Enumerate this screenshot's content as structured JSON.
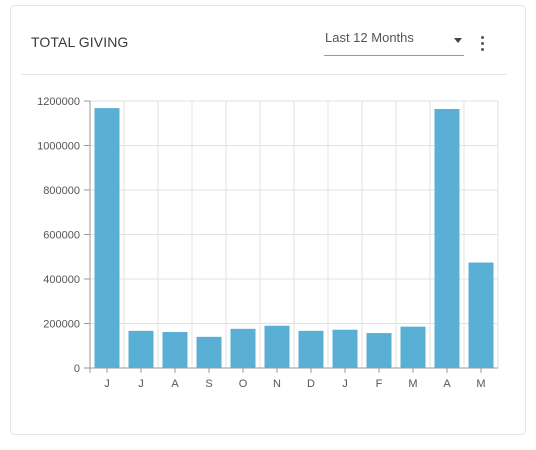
{
  "card": {
    "title": "TOTAL GIVING",
    "period_select": {
      "value": "Last 12 Months"
    },
    "menu_icon": "more-vertical-icon"
  },
  "colors": {
    "bar": "#5aafd4",
    "grid": "#e2e2e2",
    "axis": "#999999"
  },
  "chart_data": {
    "type": "bar",
    "title": "",
    "xlabel": "",
    "ylabel": "",
    "categories": [
      "J",
      "J",
      "A",
      "S",
      "O",
      "N",
      "D",
      "J",
      "F",
      "M",
      "A",
      "M"
    ],
    "values": [
      1168000,
      167000,
      162000,
      140000,
      176000,
      190000,
      167000,
      172000,
      157000,
      186000,
      1164000,
      474000
    ],
    "ylim": [
      0,
      1200000
    ],
    "yticks": [
      0,
      200000,
      400000,
      600000,
      800000,
      1000000,
      1200000
    ],
    "grid": true,
    "legend": "none"
  }
}
